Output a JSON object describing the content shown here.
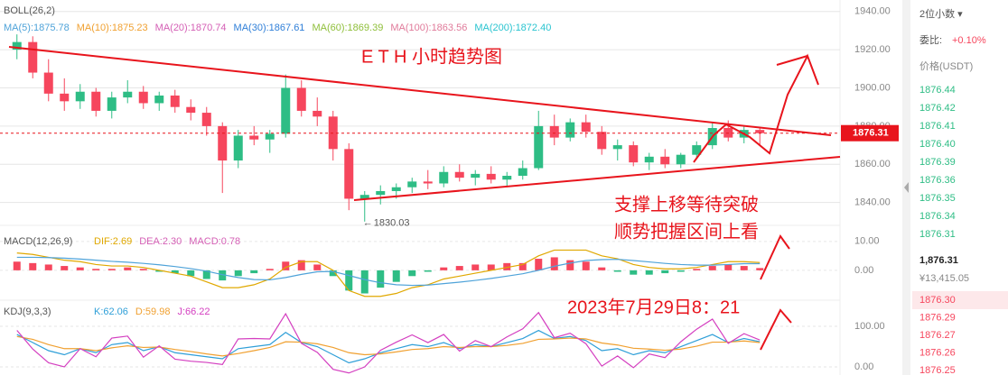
{
  "chart_data": [
    {
      "type": "candlestick",
      "title": "E T H 小时趋势图",
      "header": "BOLL(26,2)",
      "indicators": [
        {
          "label": "MA(5):1875.78",
          "color": "#4fa3d9"
        },
        {
          "label": "MA(10):1875.23",
          "color": "#f0a030"
        },
        {
          "label": "MA(20):1870.74",
          "color": "#d45fb5"
        },
        {
          "label": "MA(30):1867.61",
          "color": "#2f7fd8"
        },
        {
          "label": "MA(60):1869.39",
          "color": "#8fbf3a"
        },
        {
          "label": "MA(100):1863.56",
          "color": "#e07a9a"
        },
        {
          "label": "MA(200):1872.40",
          "color": "#2ac4d0"
        }
      ],
      "annotations": [
        "支撑上移等待突破",
        "顺势把握区间上看",
        "2023年7月29日8：21"
      ],
      "low_label": 1830.03,
      "current_price": 1876.31,
      "up_color": "#2ebd85",
      "down_color": "#f6465d",
      "open": [
        1920,
        1924,
        1908,
        1897,
        1893,
        1898,
        1888,
        1895,
        1898,
        1892,
        1896,
        1890,
        1887,
        1880,
        1862,
        1875,
        1873,
        1876,
        1900,
        1888,
        1885,
        1868,
        1842,
        1844,
        1846,
        1848,
        1851,
        1850,
        1856,
        1853,
        1855,
        1852,
        1854,
        1858,
        1880,
        1874,
        1882,
        1877,
        1868,
        1870,
        1861,
        1864,
        1860,
        1865,
        1870,
        1879,
        1874,
        1878
      ],
      "high": [
        1928,
        1927,
        1915,
        1905,
        1902,
        1900,
        1898,
        1904,
        1901,
        1898,
        1899,
        1894,
        1890,
        1882,
        1878,
        1880,
        1878,
        1907,
        1904,
        1895,
        1888,
        1871,
        1846,
        1849,
        1850,
        1853,
        1857,
        1859,
        1860,
        1857,
        1859,
        1856,
        1862,
        1888,
        1886,
        1884,
        1886,
        1880,
        1873,
        1872,
        1866,
        1868,
        1866,
        1872,
        1882,
        1883,
        1880,
        1879
      ],
      "low": [
        1915,
        1905,
        1893,
        1888,
        1889,
        1885,
        1884,
        1892,
        1889,
        1888,
        1887,
        1883,
        1875,
        1845,
        1858,
        1870,
        1866,
        1874,
        1885,
        1880,
        1862,
        1836,
        1830.03,
        1839,
        1842,
        1845,
        1847,
        1848,
        1851,
        1849,
        1850,
        1848,
        1852,
        1857,
        1870,
        1872,
        1874,
        1865,
        1862,
        1859,
        1857,
        1858,
        1858,
        1863,
        1868,
        1872,
        1871,
        1870
      ],
      "close": [
        1924,
        1908,
        1897,
        1893,
        1898,
        1888,
        1895,
        1898,
        1892,
        1896,
        1890,
        1887,
        1880,
        1862,
        1875,
        1873,
        1876,
        1900,
        1888,
        1885,
        1868,
        1842,
        1844,
        1846,
        1848,
        1851,
        1850,
        1856,
        1853,
        1855,
        1852,
        1854,
        1858,
        1880,
        1874,
        1882,
        1877,
        1868,
        1870,
        1861,
        1864,
        1860,
        1865,
        1870,
        1879,
        1874,
        1878,
        1876.31
      ],
      "ylim": [
        1829,
        1946
      ],
      "yticks": [
        {
          "value": 1940,
          "label": "1940.00"
        },
        {
          "value": 1920,
          "label": "1920.00"
        },
        {
          "value": 1900,
          "label": "1900.00"
        },
        {
          "value": 1880,
          "label": "1880.00"
        },
        {
          "value": 1860,
          "label": "1860.00"
        },
        {
          "value": 1840,
          "label": "1840.00"
        }
      ]
    },
    {
      "type": "macd",
      "header": "MACD(12,26,9)",
      "legend": [
        {
          "label": "DIF:2.69",
          "color": "#e0a800"
        },
        {
          "label": "DEA:2.30",
          "color": "#d45fb5"
        },
        {
          "label": "MACD:0.78",
          "color": "#d45fb5"
        }
      ],
      "up_color": "#f6465d",
      "down_color": "#2ebd85",
      "histogram": [
        3,
        2.5,
        2,
        1.5,
        1,
        0.5,
        0.5,
        1,
        0.5,
        -0.5,
        -1,
        -2,
        -3,
        -3.5,
        -2,
        -1,
        0.5,
        3,
        3.5,
        2,
        -2,
        -7,
        -8,
        -6,
        -4,
        -2,
        -0.5,
        1,
        1.5,
        2,
        2,
        2.5,
        2.5,
        4,
        4.5,
        3.5,
        3,
        1,
        -0.5,
        -1.5,
        -1.5,
        -1,
        -0.5,
        0.5,
        1.5,
        2,
        1.5,
        0.78
      ],
      "series": [
        {
          "color": "#e0a800",
          "values": [
            6,
            5.5,
            4.5,
            3.5,
            3,
            2,
            1.5,
            1.5,
            1,
            0,
            -1,
            -2,
            -4,
            -6,
            -6,
            -5,
            -3,
            1,
            3,
            3,
            0,
            -7,
            -9,
            -9,
            -8,
            -6,
            -5,
            -3,
            -2,
            -1,
            0,
            1,
            2,
            5,
            7,
            7,
            7,
            5,
            4,
            2,
            1,
            0.5,
            0.5,
            1,
            2,
            3,
            3,
            2.69
          ]
        },
        {
          "color": "#4fa3d9",
          "values": [
            4.5,
            4.5,
            4.4,
            4.2,
            3.9,
            3.5,
            3.1,
            2.8,
            2.4,
            1.9,
            1.3,
            0.6,
            -0.3,
            -1.5,
            -2.5,
            -3.2,
            -3.3,
            -2.5,
            -1.4,
            -0.5,
            -0.4,
            -1.8,
            -3.2,
            -4.3,
            -5.0,
            -5.2,
            -5.1,
            -4.6,
            -4.1,
            -3.5,
            -2.8,
            -2.0,
            -1.2,
            0,
            1.4,
            2.5,
            3.4,
            3.7,
            3.8,
            3.4,
            2.9,
            2.4,
            2.0,
            1.8,
            1.8,
            2.0,
            2.3,
            2.3
          ]
        }
      ],
      "ylim": [
        -9.4,
        14
      ],
      "yticks": [
        {
          "value": 10,
          "label": "10.00"
        },
        {
          "value": 0,
          "label": "0.00"
        }
      ]
    },
    {
      "type": "line",
      "header": "KDJ(9,3,3)",
      "legend": [
        {
          "label": "K:62.06",
          "color": "#2f9fd8"
        },
        {
          "label": "D:59.98",
          "color": "#f0a030"
        },
        {
          "label": "J:66.22",
          "color": "#d43fc0"
        }
      ],
      "series": [
        {
          "color": "#2f9fd8",
          "values": [
            80,
            60,
            40,
            30,
            45,
            35,
            55,
            60,
            40,
            50,
            35,
            30,
            25,
            20,
            45,
            50,
            55,
            85,
            60,
            50,
            30,
            10,
            20,
            35,
            45,
            55,
            50,
            60,
            45,
            55,
            50,
            60,
            70,
            90,
            70,
            75,
            65,
            40,
            45,
            30,
            40,
            35,
            50,
            65,
            80,
            60,
            70,
            62.06
          ]
        },
        {
          "color": "#f0a030",
          "values": [
            75,
            68,
            55,
            45,
            45,
            40,
            47,
            52,
            48,
            49,
            43,
            38,
            32,
            27,
            33,
            40,
            48,
            62,
            61,
            57,
            48,
            35,
            30,
            32,
            37,
            43,
            45,
            50,
            48,
            50,
            50,
            53,
            58,
            68,
            69,
            71,
            69,
            59,
            54,
            46,
            44,
            41,
            44,
            51,
            61,
            61,
            64,
            59.98
          ]
        },
        {
          "color": "#d43fc0",
          "values": [
            90,
            44,
            10,
            0,
            45,
            25,
            71,
            76,
            24,
            52,
            19,
            14,
            11,
            6,
            69,
            70,
            69,
            131,
            58,
            36,
            -6,
            -15,
            0,
            41,
            61,
            79,
            60,
            80,
            39,
            65,
            50,
            74,
            94,
            134,
            72,
            83,
            57,
            2,
            27,
            -2,
            32,
            23,
            62,
            93,
            118,
            58,
            82,
            66.22
          ]
        }
      ],
      "ylim": [
        -20,
        149
      ],
      "yticks": [
        {
          "value": 100,
          "label": "100.00"
        },
        {
          "value": 0,
          "label": "0.00"
        }
      ]
    }
  ],
  "order_book": {
    "precision": "2位小数 ▾",
    "ratio_label": "委比:",
    "ratio": "+0.10%",
    "price_header": "价格(USDT)",
    "asks": [
      "1876.44",
      "1876.42",
      "1876.41",
      "1876.40",
      "1876.39",
      "1876.36",
      "1876.35",
      "1876.34",
      "1876.31"
    ],
    "last": "1,876.31",
    "last_cny": "¥13,415.05",
    "bids": [
      "1876.30",
      "1876.29",
      "1876.27",
      "1876.26",
      "1876.25"
    ]
  }
}
